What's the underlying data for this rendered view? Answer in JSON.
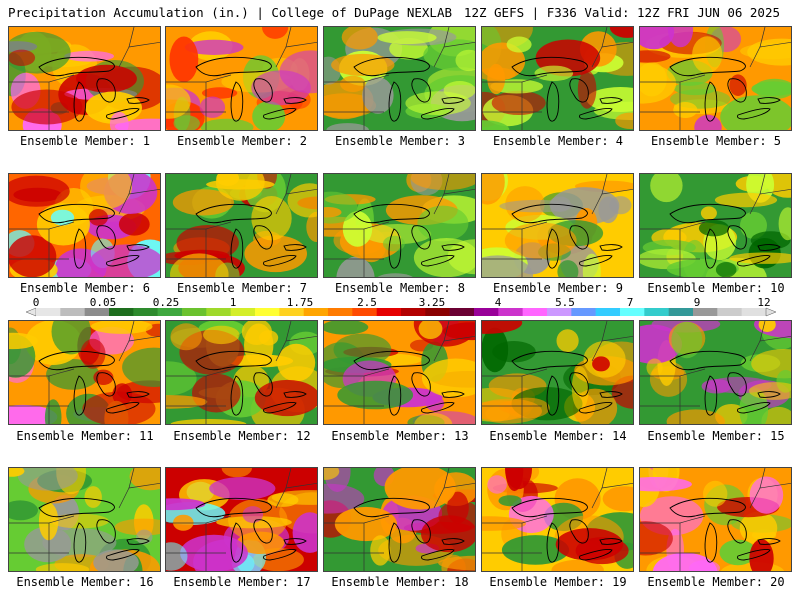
{
  "header": {
    "left": "Precipitation Accumulation (in.) | College of DuPage NEXLAB",
    "right": "12Z GEFS | F336 Valid: 12Z FRI JUN 06 2025"
  },
  "members": [
    {
      "label": "Ensemble Member: 1",
      "palette": [
        "#ff9900",
        "#cc0000",
        "#ff66ff",
        "#ffcc00",
        "#339933"
      ]
    },
    {
      "label": "Ensemble Member: 2",
      "palette": [
        "#ff9900",
        "#ff3300",
        "#cc33cc",
        "#ffcc00",
        "#66cc33"
      ]
    },
    {
      "label": "Ensemble Member: 3",
      "palette": [
        "#339933",
        "#66cc33",
        "#ccff33",
        "#ff9900",
        "#999999"
      ]
    },
    {
      "label": "Ensemble Member: 4",
      "palette": [
        "#339933",
        "#66cc33",
        "#ccff33",
        "#ff9900",
        "#cc0000"
      ]
    },
    {
      "label": "Ensemble Member: 5",
      "palette": [
        "#ff9900",
        "#ffcc00",
        "#cc0000",
        "#cc33cc",
        "#66cc33"
      ]
    },
    {
      "label": "Ensemble Member: 6",
      "palette": [
        "#ff6600",
        "#cc0000",
        "#ffcc00",
        "#66ffff",
        "#cc33cc"
      ]
    },
    {
      "label": "Ensemble Member: 7",
      "palette": [
        "#339933",
        "#66cc33",
        "#ffcc00",
        "#ff9900",
        "#cc0000"
      ]
    },
    {
      "label": "Ensemble Member: 8",
      "palette": [
        "#339933",
        "#66cc33",
        "#ccff33",
        "#ff9900",
        "#999999"
      ]
    },
    {
      "label": "Ensemble Member: 9",
      "palette": [
        "#ffcc00",
        "#ccff33",
        "#ff9900",
        "#339933",
        "#999999"
      ]
    },
    {
      "label": "Ensemble Member: 10",
      "palette": [
        "#339933",
        "#66cc33",
        "#ccff33",
        "#006600",
        "#ffcc00"
      ]
    },
    {
      "label": "Ensemble Member: 11",
      "palette": [
        "#ff9900",
        "#ffcc00",
        "#cc0000",
        "#339933",
        "#ff66ff"
      ]
    },
    {
      "label": "Ensemble Member: 12",
      "palette": [
        "#339933",
        "#ffcc00",
        "#ff9900",
        "#cc0000",
        "#66cc33"
      ]
    },
    {
      "label": "Ensemble Member: 13",
      "palette": [
        "#ff9900",
        "#cc0000",
        "#ffcc00",
        "#339933",
        "#cc33cc"
      ]
    },
    {
      "label": "Ensemble Member: 14",
      "palette": [
        "#339933",
        "#006600",
        "#ff9900",
        "#cc0000",
        "#ffcc00"
      ]
    },
    {
      "label": "Ensemble Member: 15",
      "palette": [
        "#339933",
        "#66cc33",
        "#ffcc00",
        "#ff9900",
        "#cc33cc"
      ]
    },
    {
      "label": "Ensemble Member: 16",
      "palette": [
        "#66cc33",
        "#339933",
        "#ffcc00",
        "#ff9900",
        "#999999"
      ]
    },
    {
      "label": "Ensemble Member: 17",
      "palette": [
        "#cc0000",
        "#ff9900",
        "#cc33cc",
        "#ffcc00",
        "#66ffff"
      ]
    },
    {
      "label": "Ensemble Member: 18",
      "palette": [
        "#339933",
        "#ffcc00",
        "#ff9900",
        "#cc0000",
        "#cc33cc"
      ]
    },
    {
      "label": "Ensemble Member: 19",
      "palette": [
        "#ffcc00",
        "#ff9900",
        "#cc0000",
        "#ff66ff",
        "#339933"
      ]
    },
    {
      "label": "Ensemble Member: 20",
      "palette": [
        "#ff9900",
        "#ffcc00",
        "#cc0000",
        "#66cc33",
        "#ff66ff"
      ]
    }
  ],
  "colorbar": {
    "ticks": [
      "0",
      "0.05",
      "0.25",
      "1",
      "1.75",
      "2.5",
      "3.25",
      "4",
      "5.5",
      "7",
      "9",
      "12"
    ],
    "colors": [
      "#e6e6e6",
      "#bdbdbd",
      "#8c8c8c",
      "#1e6e1e",
      "#2e8b2e",
      "#3fa83f",
      "#6bc22e",
      "#9fd92a",
      "#d4ee29",
      "#ffff33",
      "#ffd21f",
      "#ffa500",
      "#ff7b00",
      "#ff4a00",
      "#e60000",
      "#b30000",
      "#8b0000",
      "#6b0033",
      "#990099",
      "#cc33cc",
      "#ff66ff",
      "#cc99ff",
      "#6699ff",
      "#33ccff",
      "#66ffff",
      "#33cccc",
      "#339999",
      "#999999",
      "#cccccc",
      "#e0e0e0"
    ]
  }
}
